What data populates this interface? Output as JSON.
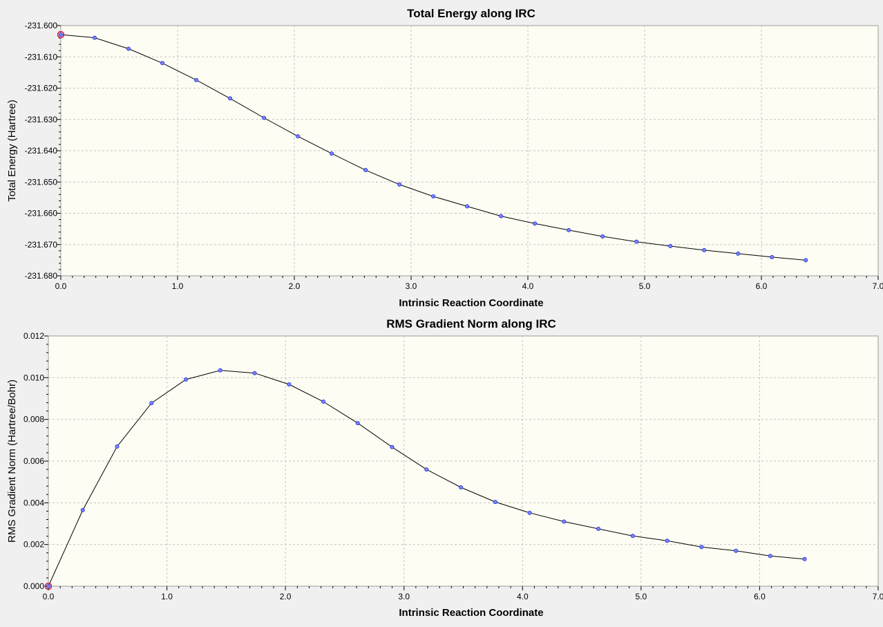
{
  "colors": {
    "background": "#f0f0f0",
    "plot_area": "#fdfdf3",
    "curve": "#000000",
    "marker_fill": "#7b84ff",
    "marker_stroke": "#1f2fd0",
    "selected_marker": "#d01a3a",
    "grid": "#c3c3c3"
  },
  "chart_data": [
    {
      "type": "line",
      "title": "Total Energy along IRC",
      "xlabel": "Intrinsic Reaction Coordinate",
      "ylabel": "Total Energy (Hartree)",
      "xlim": [
        0,
        7.0
      ],
      "ylim": [
        -231.68,
        -231.6
      ],
      "xticks": [
        0.0,
        1.0,
        2.0,
        3.0,
        4.0,
        5.0,
        6.0,
        7.0
      ],
      "xtick_labels": [
        "0.0",
        "1.0",
        "2.0",
        "3.0",
        "4.0",
        "5.0",
        "6.0",
        "7.0"
      ],
      "yticks": [
        -231.68,
        -231.67,
        -231.66,
        -231.65,
        -231.64,
        -231.63,
        -231.62,
        -231.61,
        -231.6
      ],
      "ytick_labels": [
        "-231.680",
        "-231.670",
        "-231.660",
        "-231.650",
        "-231.640",
        "-231.630",
        "-231.620",
        "-231.610",
        "-231.600"
      ],
      "grid": true,
      "selected_point_index": 0,
      "series": [
        {
          "x": [
            0.0,
            0.29,
            0.58,
            0.87,
            1.16,
            1.45,
            1.74,
            2.03,
            2.32,
            2.61,
            2.9,
            3.19,
            3.48,
            3.77,
            4.06,
            4.35,
            4.64,
            4.93,
            5.22,
            5.51,
            5.8,
            6.09,
            6.38
          ],
          "y": [
            -231.6029,
            -231.6039,
            -231.6074,
            -231.612,
            -231.6174,
            -231.6233,
            -231.6295,
            -231.6354,
            -231.6409,
            -231.6462,
            -231.6508,
            -231.6546,
            -231.6578,
            -231.6609,
            -231.6633,
            -231.6654,
            -231.6674,
            -231.6691,
            -231.6705,
            -231.6718,
            -231.6729,
            -231.674,
            -231.675
          ]
        }
      ]
    },
    {
      "type": "line",
      "title": "RMS Gradient Norm along IRC",
      "xlabel": "Intrinsic Reaction Coordinate",
      "ylabel": "RMS Gradient Norm (Hartree/Bohr)",
      "xlim": [
        0,
        7.0
      ],
      "ylim": [
        0,
        0.012
      ],
      "xticks": [
        0.0,
        1.0,
        2.0,
        3.0,
        4.0,
        5.0,
        6.0,
        7.0
      ],
      "xtick_labels": [
        "0.0",
        "1.0",
        "2.0",
        "3.0",
        "4.0",
        "5.0",
        "6.0",
        "7.0"
      ],
      "yticks": [
        0.0,
        0.002,
        0.004,
        0.006,
        0.008,
        0.01,
        0.012
      ],
      "ytick_labels": [
        "0.000",
        "0.002",
        "0.004",
        "0.006",
        "0.008",
        "0.010",
        "0.012"
      ],
      "grid": true,
      "selected_point_index": 0,
      "series": [
        {
          "x": [
            0.0,
            0.29,
            0.58,
            0.87,
            1.16,
            1.45,
            1.74,
            2.03,
            2.32,
            2.61,
            2.9,
            3.19,
            3.48,
            3.77,
            4.06,
            4.35,
            4.64,
            4.93,
            5.22,
            5.51,
            5.8,
            6.09,
            6.38
          ],
          "y": [
            0.0,
            0.00365,
            0.0067,
            0.00878,
            0.00991,
            0.01035,
            0.01022,
            0.00968,
            0.00885,
            0.00782,
            0.00667,
            0.0056,
            0.00474,
            0.00404,
            0.00352,
            0.0031,
            0.00275,
            0.00241,
            0.00218,
            0.00188,
            0.0017,
            0.00145,
            0.0013
          ]
        }
      ]
    }
  ]
}
